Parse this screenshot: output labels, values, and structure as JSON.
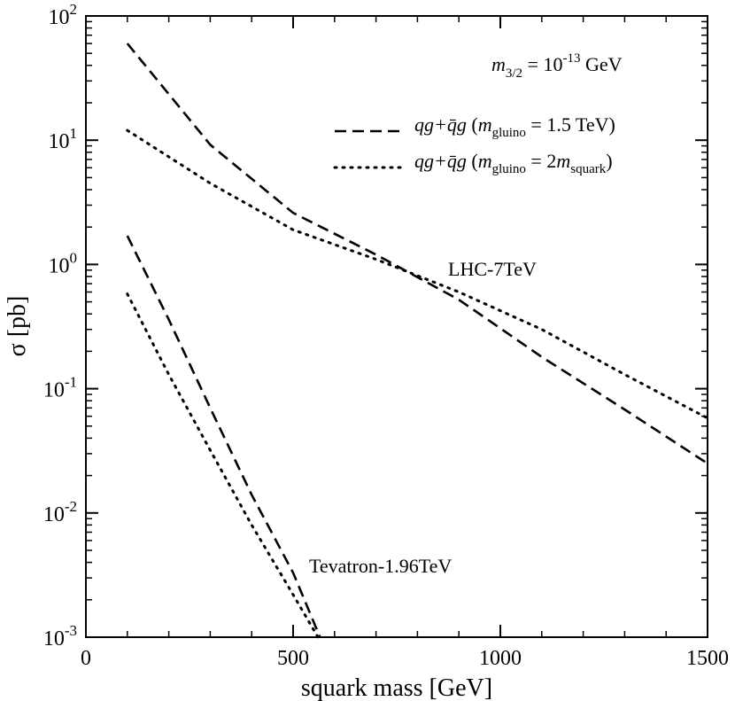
{
  "chart_data": {
    "type": "line",
    "title": "",
    "xlabel": "squark mass [GeV]",
    "ylabel": "σ [pb]",
    "xlim": [
      0,
      1500
    ],
    "ylim": [
      0.001,
      100
    ],
    "yscale": "log",
    "x_ticks": [
      0,
      500,
      1000,
      1500
    ],
    "x_tick_labels": [
      "0",
      "500",
      "1000",
      "1500"
    ],
    "y_ticks": [
      {
        "value": 100,
        "base": "10",
        "exp": "2"
      },
      {
        "value": 10,
        "base": "10",
        "exp": "1"
      },
      {
        "value": 1,
        "base": "10",
        "exp": "0"
      },
      {
        "value": 0.1,
        "base": "10",
        "exp": "-1"
      },
      {
        "value": 0.01,
        "base": "10",
        "exp": "-2"
      },
      {
        "value": 0.001,
        "base": "10",
        "exp": "-3"
      }
    ],
    "annotation": {
      "mass_symbol": "m",
      "mass_subscript": "3/2",
      "equals_text": " = 10",
      "exponent": "-13",
      "unit": " GeV"
    },
    "legend": [
      {
        "style": "dashed",
        "process": "qg+q̄g",
        "open": " (",
        "m": "m",
        "sub": "gluino",
        "rest": " = 1.5 TeV)"
      },
      {
        "style": "dotted",
        "process": "qg+q̄g",
        "open": " (",
        "m": "m",
        "sub": "gluino",
        "mid": " = 2",
        "m2": "m",
        "sub2": "squark",
        "close": ")"
      }
    ],
    "region_labels": [
      "LHC-7TeV",
      "Tevatron-1.96TeV"
    ],
    "series": [
      {
        "name": "LHC-7TeV qg+q̄g (m_gluino = 1.5 TeV)",
        "style": "dashed",
        "x": [
          100,
          300,
          500,
          700,
          900,
          1100,
          1300,
          1500
        ],
        "y": [
          60,
          9.2,
          2.6,
          1.2,
          0.52,
          0.18,
          0.068,
          0.025
        ]
      },
      {
        "name": "LHC-7TeV qg+q̄g (m_gluino = 2 m_squark)",
        "style": "dotted",
        "x": [
          100,
          300,
          500,
          700,
          900,
          1100,
          1300,
          1500
        ],
        "y": [
          12,
          4.5,
          1.9,
          1.1,
          0.6,
          0.3,
          0.13,
          0.058
        ]
      },
      {
        "name": "Tevatron-1.96TeV qg+q̄g (m_gluino = 1.5 TeV)",
        "style": "dashed",
        "x": [
          100,
          200,
          300,
          400,
          500,
          565
        ],
        "y": [
          1.7,
          0.36,
          0.07,
          0.014,
          0.0033,
          0.001
        ]
      },
      {
        "name": "Tevatron-1.96TeV qg+q̄g (m_gluino = 2 m_squark)",
        "style": "dotted",
        "x": [
          100,
          200,
          300,
          400,
          500,
          560
        ],
        "y": [
          0.58,
          0.13,
          0.032,
          0.008,
          0.0022,
          0.001
        ]
      }
    ]
  }
}
